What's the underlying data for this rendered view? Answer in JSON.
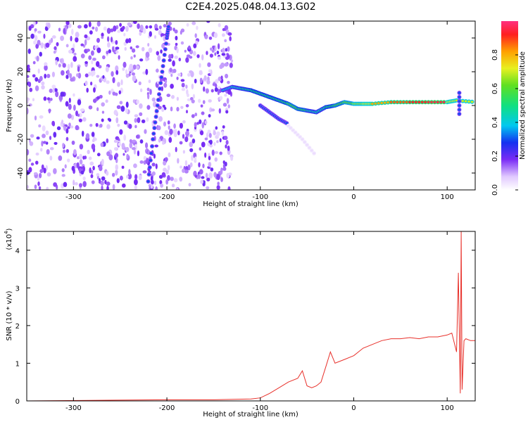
{
  "chart_data": [
    {
      "type": "heatmap",
      "title": "C2E4.2025.048.04.13.G02",
      "xlabel": "Height of straight line (km)",
      "ylabel": "Frequency (Hz)",
      "xlim": [
        -350,
        130
      ],
      "ylim": [
        -50,
        50
      ],
      "x_ticks": [
        -300,
        -200,
        -100,
        0,
        100
      ],
      "y_ticks": [
        -40,
        -20,
        0,
        20,
        40
      ],
      "colorbar": {
        "label": "Normalized spectral amplitude",
        "range": [
          0,
          1
        ],
        "ticks": [
          0.0,
          0.2,
          0.4,
          0.6,
          0.8
        ]
      },
      "noise_region": {
        "x_range": [
          -350,
          -130
        ],
        "y_range": [
          -50,
          50
        ]
      },
      "features": [
        {
          "name": "dispersed trail",
          "points": [
            [
              -220,
              -45
            ],
            [
              -215,
              -20
            ],
            [
              -210,
              0
            ],
            [
              -205,
              20
            ],
            [
              -200,
              40
            ],
            [
              -198,
              48
            ]
          ],
          "amplitude": 0.3
        },
        {
          "name": "main band",
          "points": [
            [
              -140,
              9
            ],
            [
              -130,
              11
            ],
            [
              -120,
              10
            ],
            [
              -110,
              9
            ],
            [
              -100,
              7
            ],
            [
              -90,
              5
            ],
            [
              -80,
              3
            ],
            [
              -70,
              1
            ],
            [
              -60,
              -2
            ],
            [
              -50,
              -3
            ],
            [
              -40,
              -4
            ],
            [
              -30,
              -1
            ],
            [
              -20,
              0
            ],
            [
              -10,
              2
            ],
            [
              0,
              1
            ],
            [
              10,
              1
            ],
            [
              20,
              1
            ],
            [
              40,
              2
            ],
            [
              60,
              2
            ],
            [
              80,
              2
            ],
            [
              100,
              2
            ],
            [
              110,
              3
            ],
            [
              130,
              2
            ]
          ],
          "amplitudes": [
            0.35,
            0.4,
            0.45,
            0.5,
            0.5,
            0.5,
            0.5,
            0.55,
            0.6,
            0.5,
            0.4,
            0.5,
            0.55,
            0.6,
            0.65,
            0.7,
            0.75,
            0.85,
            0.9,
            0.95,
            0.95,
            0.5,
            0.9
          ]
        },
        {
          "name": "lower branch",
          "points": [
            [
              -100,
              0
            ],
            [
              -90,
              -4
            ],
            [
              -80,
              -8
            ],
            [
              -70,
              -11
            ]
          ],
          "amplitude": 0.3
        },
        {
          "name": "faint tail",
          "points": [
            [
              -70,
              -12
            ],
            [
              -55,
              -20
            ],
            [
              -40,
              -30
            ]
          ],
          "amplitude": 0.05
        },
        {
          "name": "spike",
          "points": [
            [
              113,
              -5
            ],
            [
              113,
              10
            ]
          ],
          "amplitude": 0.3
        }
      ]
    },
    {
      "type": "line",
      "xlabel": "Height of straight line (km)",
      "ylabel": "SNR (10 * v/v)",
      "y_multiplier": "(x10",
      "y_multiplier_exp": "4",
      "xlim": [
        -350,
        130
      ],
      "ylim": [
        0,
        4.5
      ],
      "x_ticks": [
        -300,
        -200,
        -100,
        0,
        100
      ],
      "y_ticks": [
        0,
        1,
        2,
        3,
        4
      ],
      "series_color": "#e8302a",
      "x": [
        -350,
        -250,
        -200,
        -150,
        -110,
        -100,
        -90,
        -80,
        -70,
        -60,
        -55,
        -50,
        -45,
        -40,
        -35,
        -30,
        -25,
        -20,
        -10,
        0,
        10,
        20,
        30,
        40,
        50,
        60,
        70,
        80,
        90,
        100,
        105,
        110,
        112,
        114,
        115,
        116,
        118,
        120,
        125,
        130
      ],
      "y": [
        0.0,
        0.02,
        0.03,
        0.03,
        0.05,
        0.08,
        0.2,
        0.35,
        0.5,
        0.6,
        0.8,
        0.4,
        0.35,
        0.4,
        0.5,
        0.9,
        1.3,
        1.0,
        1.1,
        1.2,
        1.4,
        1.5,
        1.6,
        1.65,
        1.65,
        1.68,
        1.65,
        1.7,
        1.7,
        1.75,
        1.8,
        1.3,
        3.4,
        0.2,
        4.5,
        0.3,
        1.6,
        1.65,
        1.6,
        1.6
      ]
    }
  ]
}
